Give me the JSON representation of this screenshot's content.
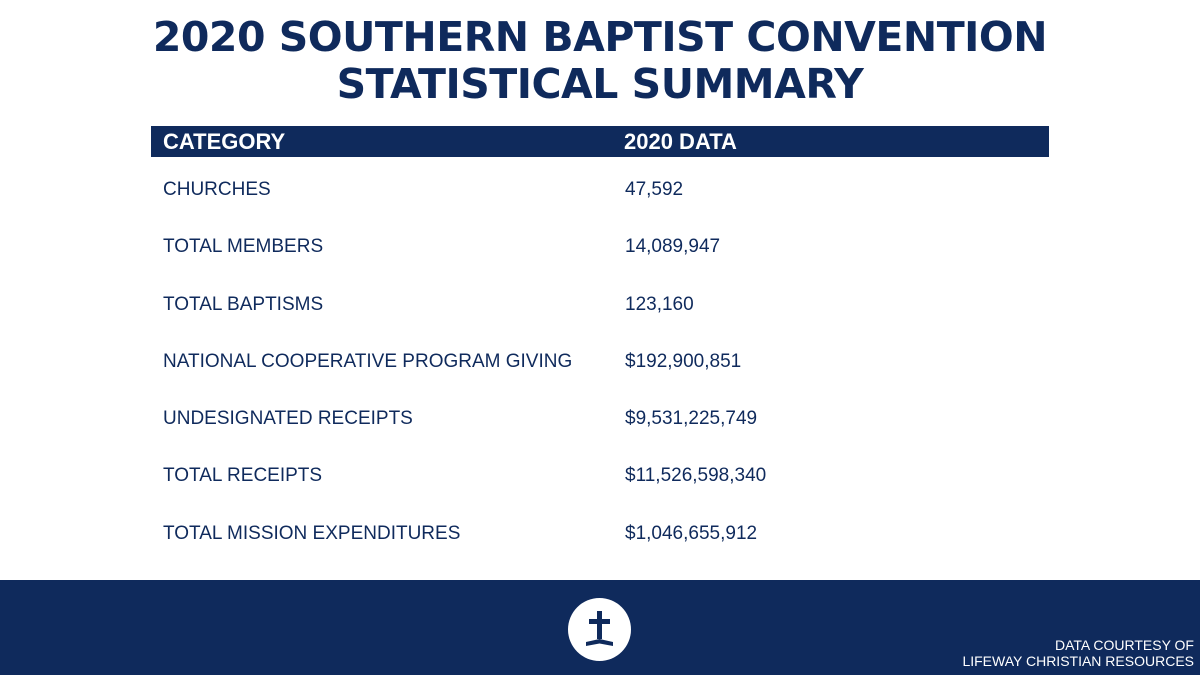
{
  "title": {
    "line1": "2020 SOUTHERN BAPTIST CONVENTION",
    "line2": "STATISTICAL SUMMARY"
  },
  "table": {
    "headers": {
      "category": "CATEGORY",
      "data": "2020 DATA"
    },
    "rows": [
      {
        "category": "CHURCHES",
        "value": "47,592"
      },
      {
        "category": "TOTAL MEMBERS",
        "value": "14,089,947"
      },
      {
        "category": "TOTAL BAPTISMS",
        "value": "123,160"
      },
      {
        "category": "NATIONAL COOPERATIVE PROGRAM GIVING",
        "value": "$192,900,851"
      },
      {
        "category": "UNDESIGNATED RECEIPTS",
        "value": "$9,531,225,749"
      },
      {
        "category": "TOTAL RECEIPTS",
        "value": "$11,526,598,340"
      },
      {
        "category": "TOTAL MISSION EXPENDITURES",
        "value": "$1,046,655,912"
      }
    ]
  },
  "footer": {
    "logo_icon": "cross-logo-icon",
    "credit_line1": "DATA COURTESY OF",
    "credit_line2": "LIFEWAY CHRISTIAN RESOURCES"
  },
  "colors": {
    "navy": "#0f2a5c",
    "white": "#ffffff"
  }
}
